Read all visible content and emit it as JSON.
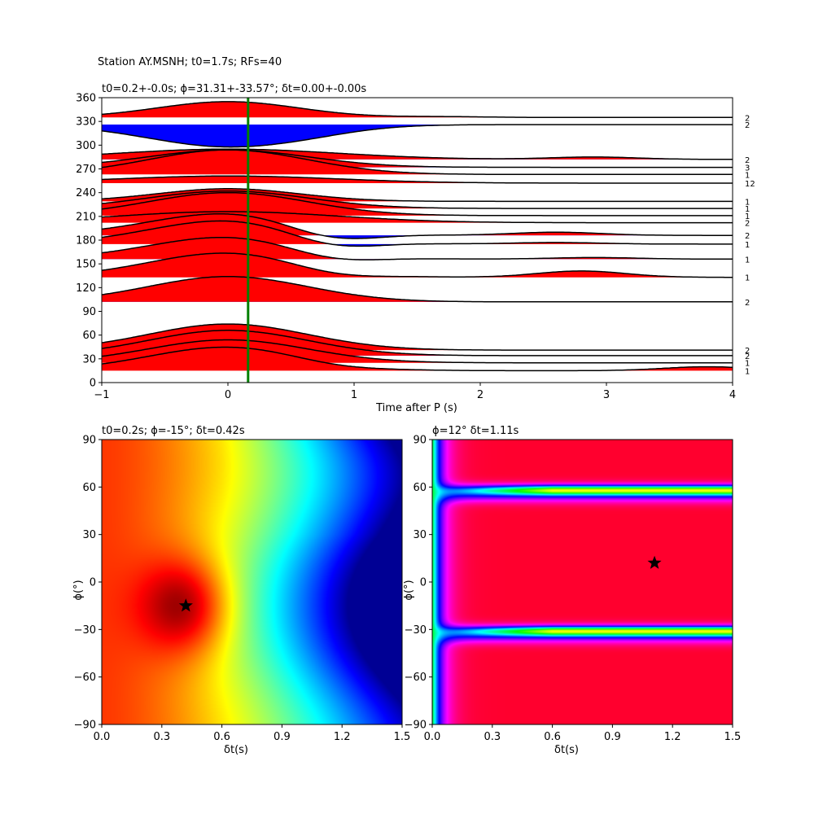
{
  "suptitle": "Station AY.MSNH; t0=1.7s; RFs=40",
  "panels": {
    "top": {
      "title": "t0=0.2+-0.0s; ϕ=31.31+-33.57°; δt=0.00+-0.00s"
    },
    "bottom_left": {
      "title": "t0=0.2s; ϕ=-15°; δt=0.42s"
    },
    "bottom_right": {
      "title": "ϕ=12° δt=1.11s"
    }
  },
  "chart_data": [
    {
      "type": "line",
      "subtype": "receiver-function-wiggle-plot",
      "title": "t0=0.2+-0.0s; ϕ=31.31+-33.57°; δt=0.00+-0.00s",
      "xlabel": "Time after P (s)",
      "ylabel": "",
      "xlim": [
        -1,
        4
      ],
      "ylim": [
        0,
        360
      ],
      "xticks": [
        "−1",
        "0",
        "1",
        "2",
        "3",
        "4"
      ],
      "yticks": [
        "0",
        "30",
        "60",
        "90",
        "120",
        "150",
        "180",
        "210",
        "240",
        "270",
        "300",
        "330",
        "360"
      ],
      "marker_line_time": 0.16,
      "colors": {
        "positive": "#ff0000",
        "negative": "#0000ff",
        "trace": "#000000",
        "marker": "#008000"
      },
      "traces": [
        {
          "baz": 335,
          "count": "2",
          "peak": 20,
          "late": [
            {
              "t": 1.7,
              "a": 1
            }
          ]
        },
        {
          "baz": 326,
          "count": "2",
          "peak": -28,
          "late": [
            {
              "t": 0.7,
              "a": -2
            }
          ]
        },
        {
          "baz": 282,
          "count": "2",
          "peak": 13,
          "late": [
            {
              "t": 2.9,
              "a": 3
            }
          ]
        },
        {
          "baz": 272,
          "count": "3",
          "peak": 22,
          "late": []
        },
        {
          "baz": 263,
          "count": "1",
          "peak": 31,
          "late": []
        },
        {
          "baz": 252,
          "count": "12",
          "peak": 9,
          "late": []
        },
        {
          "baz": 229,
          "count": "1",
          "peak": 16,
          "late": []
        },
        {
          "baz": 220,
          "count": "1",
          "peak": 22,
          "late": []
        },
        {
          "baz": 211,
          "count": "1",
          "peak": 29,
          "late": []
        },
        {
          "baz": 202,
          "count": "2",
          "peak": 14,
          "late": []
        },
        {
          "baz": 186,
          "count": "2",
          "peak": 28,
          "late": [
            {
              "t": 0.8,
              "a": -14
            },
            {
              "t": 2.6,
              "a": 4
            }
          ]
        },
        {
          "baz": 175,
          "count": "1",
          "peak": 30,
          "late": [
            {
              "t": 0.8,
              "a": -13
            },
            {
              "t": 2.6,
              "a": 2
            }
          ]
        },
        {
          "baz": 156,
          "count": "1",
          "peak": 28,
          "late": [
            {
              "t": 0.8,
              "a": -10
            },
            {
              "t": 2.9,
              "a": 2
            }
          ]
        },
        {
          "baz": 133,
          "count": "1",
          "peak": 31,
          "late": [
            {
              "t": 0.8,
              "a": -7
            },
            {
              "t": 2.8,
              "a": 8
            }
          ]
        },
        {
          "baz": 102,
          "count": "2",
          "peak": 32,
          "late": []
        },
        {
          "baz": 41,
          "count": "2",
          "peak": 33,
          "late": []
        },
        {
          "baz": 34,
          "count": "2",
          "peak": 32,
          "late": []
        },
        {
          "baz": 25,
          "count": "1",
          "peak": 29,
          "late": []
        },
        {
          "baz": 15,
          "count": "1",
          "peak": 30,
          "late": [
            {
              "t": 0.8,
              "a": -4
            },
            {
              "t": 3.8,
              "a": 5
            }
          ]
        }
      ]
    },
    {
      "type": "heatmap",
      "title": "t0=0.2s; ϕ=-15°; δt=0.42s",
      "xlabel": "δt(s)",
      "ylabel": "ϕ(°)",
      "xlim": [
        0,
        1.5
      ],
      "ylim": [
        -90,
        90
      ],
      "xticks": [
        "0.0",
        "0.3",
        "0.6",
        "0.9",
        "1.2",
        "1.5"
      ],
      "yticks": [
        "−90",
        "−60",
        "−30",
        "0",
        "30",
        "60",
        "90"
      ],
      "colormap": "jet",
      "best": {
        "dt": 0.42,
        "phi": -15
      }
    },
    {
      "type": "heatmap",
      "title": "ϕ=12° δt=1.11s",
      "xlabel": "δt(s)",
      "ylabel": "ϕ(°)",
      "xlim": [
        0,
        1.5
      ],
      "ylim": [
        -90,
        90
      ],
      "xticks": [
        "0.0",
        "0.3",
        "0.6",
        "0.9",
        "1.2",
        "1.5"
      ],
      "yticks": [
        "−90",
        "−60",
        "−30",
        "0",
        "30",
        "60",
        "90"
      ],
      "colormap": "hsv",
      "best": {
        "dt": 1.11,
        "phi": 12
      }
    }
  ]
}
